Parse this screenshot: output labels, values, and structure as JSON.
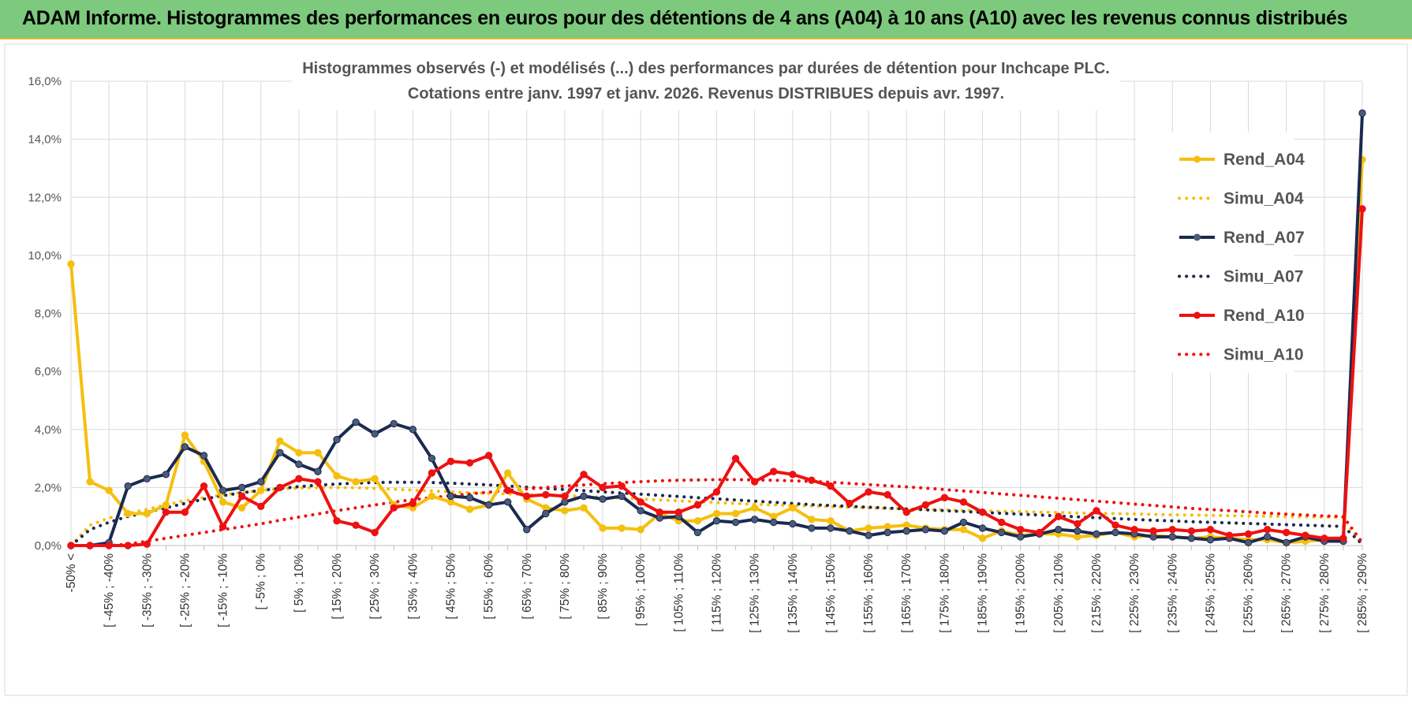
{
  "banner": {
    "title": "ADAM Informe. Histogrammes des performances en euros pour des détentions de 4 ans (A04) à 10 ans (A10) avec les revenus connus distribués"
  },
  "chart_data": {
    "type": "line",
    "title_lines": [
      "Histogrammes observés (-) et modélisés (...) des performances par durées de détention pour Inchcape PLC.",
      "Cotations entre janv. 1997 et janv. 2026. Revenus DISTRIBUES depuis avr. 1997."
    ],
    "ylim": [
      0,
      16
    ],
    "yticks": [
      0,
      2,
      4,
      6,
      8,
      10,
      12,
      14,
      16
    ],
    "ytick_labels": [
      "0,0%",
      "2,0%",
      "4,0%",
      "6,0%",
      "8,0%",
      "10,0%",
      "12,0%",
      "14,0%",
      "16,0%"
    ],
    "n_points": 69,
    "xtick_labels": [
      "-50% <",
      "[ -45% ; -40%",
      "[ -35% ; -30%",
      "[ -25% ; -20%",
      "[ -15% ; -10%",
      "[ -5% ; 0%",
      "[ 5% ; 10%",
      "[ 15% ; 20%",
      "[ 25% ; 30%",
      "[ 35% ; 40%",
      "[ 45% ; 50%",
      "[ 55% ; 60%",
      "[ 65% ; 70%",
      "[ 75% ; 80%",
      "[ 85% ; 90%",
      "[ 95% ; 100%",
      "[ 105% ; 110%",
      "[ 115% ; 120%",
      "[ 125% ; 130%",
      "[ 135% ; 140%",
      "[ 145% ; 150%",
      "[ 155% ; 160%",
      "[ 165% ; 170%",
      "[ 175% ; 180%",
      "[ 185% ; 190%",
      "[ 195% ; 200%",
      "[ 205% ; 210%",
      "[ 215% ; 220%",
      "[ 225% ; 230%",
      "[ 235% ; 240%",
      "[ 245% ; 250%",
      "[ 255% ; 260%",
      "[ 265% ; 270%",
      "[ 275% ; 280%",
      "[ 285% ; 290%"
    ],
    "xtick_indices": [
      0,
      2,
      4,
      6,
      8,
      10,
      12,
      14,
      16,
      18,
      20,
      22,
      24,
      26,
      28,
      30,
      32,
      34,
      36,
      38,
      40,
      42,
      44,
      46,
      48,
      50,
      52,
      54,
      56,
      58,
      60,
      62,
      64,
      66,
      68
    ],
    "series": [
      {
        "name": "Rend_A04",
        "style": "solid",
        "color": "#f5bf0f",
        "markers": true,
        "values": [
          9.7,
          2.2,
          1.9,
          1.1,
          1.1,
          1.4,
          3.8,
          2.9,
          1.5,
          1.3,
          1.9,
          3.6,
          3.2,
          3.2,
          2.4,
          2.2,
          2.3,
          1.4,
          1.3,
          1.7,
          1.5,
          1.25,
          1.4,
          2.5,
          1.6,
          1.3,
          1.2,
          1.3,
          0.6,
          0.6,
          0.55,
          1.1,
          0.85,
          0.85,
          1.1,
          1.1,
          1.3,
          1.0,
          1.3,
          0.9,
          0.85,
          0.5,
          0.6,
          0.65,
          0.7,
          0.6,
          0.55,
          0.55,
          0.25,
          0.5,
          0.35,
          0.4,
          0.4,
          0.3,
          0.35,
          0.45,
          0.3,
          0.35,
          0.3,
          0.25,
          0.3,
          0.25,
          0.2,
          0.2,
          0.1,
          0.15,
          0.2,
          0.15,
          13.3
        ]
      },
      {
        "name": "Simu_A04",
        "style": "dotted",
        "color": "#f5bf0f",
        "markers": false,
        "values": [
          0.0,
          0.7,
          0.95,
          1.1,
          1.25,
          1.4,
          1.55,
          1.65,
          1.75,
          1.83,
          1.9,
          1.95,
          1.98,
          2.0,
          2.0,
          1.99,
          1.97,
          1.94,
          1.91,
          1.88,
          1.85,
          1.82,
          1.8,
          1.78,
          1.76,
          1.74,
          1.72,
          1.69,
          1.66,
          1.63,
          1.6,
          1.57,
          1.54,
          1.51,
          1.48,
          1.45,
          1.42,
          1.4,
          1.38,
          1.36,
          1.34,
          1.32,
          1.3,
          1.28,
          1.26,
          1.25,
          1.23,
          1.21,
          1.2,
          1.18,
          1.17,
          1.15,
          1.14,
          1.12,
          1.11,
          1.1,
          1.09,
          1.07,
          1.06,
          1.05,
          1.04,
          1.03,
          1.02,
          1.01,
          1.0,
          0.99,
          0.98,
          0.97,
          0.0
        ]
      },
      {
        "name": "Rend_A07",
        "style": "solid",
        "color": "#1b2a4f",
        "markers": true,
        "values": [
          0.0,
          0.0,
          0.1,
          2.05,
          2.3,
          2.45,
          3.4,
          3.1,
          1.9,
          2.0,
          2.2,
          3.2,
          2.8,
          2.55,
          3.65,
          4.25,
          3.85,
          4.2,
          4.0,
          3.0,
          1.7,
          1.65,
          1.4,
          1.5,
          0.55,
          1.1,
          1.5,
          1.7,
          1.6,
          1.7,
          1.2,
          0.95,
          1.0,
          0.45,
          0.85,
          0.8,
          0.9,
          0.8,
          0.75,
          0.6,
          0.6,
          0.5,
          0.35,
          0.45,
          0.5,
          0.55,
          0.5,
          0.8,
          0.6,
          0.45,
          0.3,
          0.4,
          0.55,
          0.5,
          0.4,
          0.45,
          0.4,
          0.3,
          0.3,
          0.25,
          0.2,
          0.25,
          0.1,
          0.3,
          0.1,
          0.3,
          0.15,
          0.15,
          14.9
        ]
      },
      {
        "name": "Simu_A07",
        "style": "dotted",
        "color": "#1b2a4f",
        "markers": false,
        "values": [
          0.0,
          0.55,
          0.8,
          1.0,
          1.15,
          1.3,
          1.45,
          1.6,
          1.72,
          1.82,
          1.9,
          1.97,
          2.03,
          2.08,
          2.12,
          2.15,
          2.17,
          2.18,
          2.18,
          2.17,
          2.15,
          2.12,
          2.09,
          2.05,
          2.01,
          1.97,
          1.93,
          1.89,
          1.85,
          1.81,
          1.77,
          1.73,
          1.69,
          1.65,
          1.61,
          1.57,
          1.53,
          1.49,
          1.45,
          1.41,
          1.38,
          1.35,
          1.32,
          1.29,
          1.26,
          1.23,
          1.2,
          1.17,
          1.14,
          1.11,
          1.08,
          1.05,
          1.02,
          0.99,
          0.96,
          0.93,
          0.9,
          0.87,
          0.85,
          0.82,
          0.8,
          0.78,
          0.76,
          0.74,
          0.72,
          0.7,
          0.68,
          0.66,
          0.05
        ]
      },
      {
        "name": "Rend_A10",
        "style": "solid",
        "color": "#ee1111",
        "markers": true,
        "values": [
          0.0,
          0.0,
          0.0,
          0.0,
          0.05,
          1.15,
          1.15,
          2.05,
          0.65,
          1.7,
          1.35,
          2.0,
          2.3,
          2.2,
          0.85,
          0.7,
          0.45,
          1.3,
          1.45,
          2.5,
          2.9,
          2.85,
          3.1,
          1.9,
          1.7,
          1.75,
          1.7,
          2.45,
          2.0,
          2.05,
          1.5,
          1.15,
          1.15,
          1.4,
          1.85,
          3.0,
          2.2,
          2.55,
          2.45,
          2.25,
          2.05,
          1.45,
          1.85,
          1.75,
          1.15,
          1.4,
          1.65,
          1.5,
          1.15,
          0.8,
          0.55,
          0.45,
          1.0,
          0.75,
          1.2,
          0.7,
          0.55,
          0.5,
          0.55,
          0.5,
          0.55,
          0.35,
          0.4,
          0.55,
          0.45,
          0.35,
          0.25,
          0.25,
          11.6
        ]
      },
      {
        "name": "Simu_A10",
        "style": "dotted",
        "color": "#ee1111",
        "markers": false,
        "values": [
          0.0,
          0.0,
          0.0,
          0.05,
          0.15,
          0.25,
          0.35,
          0.45,
          0.55,
          0.65,
          0.75,
          0.87,
          0.98,
          1.09,
          1.2,
          1.3,
          1.4,
          1.5,
          1.58,
          1.65,
          1.72,
          1.78,
          1.84,
          1.9,
          1.95,
          2.0,
          2.05,
          2.09,
          2.13,
          2.17,
          2.2,
          2.23,
          2.25,
          2.26,
          2.27,
          2.27,
          2.26,
          2.25,
          2.23,
          2.21,
          2.18,
          2.14,
          2.1,
          2.06,
          2.02,
          1.98,
          1.93,
          1.88,
          1.83,
          1.78,
          1.73,
          1.68,
          1.63,
          1.58,
          1.53,
          1.48,
          1.43,
          1.38,
          1.33,
          1.28,
          1.24,
          1.2,
          1.16,
          1.12,
          1.08,
          1.05,
          1.02,
          1.0,
          0.1
        ]
      }
    ],
    "legend_position": "right"
  }
}
